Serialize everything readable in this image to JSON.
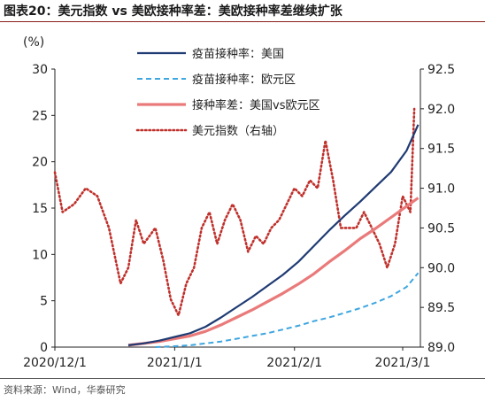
{
  "figure": {
    "title": "图表20：美元指数 vs 美欧接种率差：美欧接种率差继续扩张",
    "source": "资料来源：Wind，华泰研究"
  },
  "colors": {
    "us": "#1f3b73",
    "eu": "#3ea6e0",
    "diff": "#ea7a7a",
    "dxy": "#c0302b",
    "title_rule": "#8c1d1d"
  },
  "chart_data": {
    "type": "line",
    "title": "",
    "xlabel": "",
    "ylabel": "(%)",
    "ylabel_right": "",
    "x_range": [
      "2020-12-01",
      "2021-03-01"
    ],
    "ylim": [
      0,
      30
    ],
    "ylim_right": [
      89.0,
      92.5
    ],
    "grid": false,
    "legend_position": "top-center",
    "x_ticks": [
      "2020/12/1",
      "2021/1/1",
      "2021/2/1",
      "2021/3/1"
    ],
    "x_tick_dates": [
      "2020-12-01",
      "2021-01-01",
      "2021-02-01",
      "2021-03-01"
    ],
    "y_ticks": [
      0,
      5,
      10,
      15,
      20,
      25,
      30
    ],
    "y_ticks_right": [
      "89.0",
      "89.5",
      "90.0",
      "90.5",
      "91.0",
      "91.5",
      "92.0",
      "92.5"
    ],
    "series": [
      {
        "name": "疫苗接种率：美国",
        "axis": "left",
        "style": "solid",
        "x": [
          "2020-12-20",
          "2020-12-24",
          "2020-12-28",
          "2021-01-01",
          "2021-01-05",
          "2021-01-09",
          "2021-01-13",
          "2021-01-17",
          "2021-01-21",
          "2021-01-25",
          "2021-01-29",
          "2021-02-02",
          "2021-02-06",
          "2021-02-10",
          "2021-02-14",
          "2021-02-18",
          "2021-02-22",
          "2021-02-26",
          "2021-03-02",
          "2021-03-05"
        ],
        "y": [
          0.2,
          0.4,
          0.7,
          1.1,
          1.5,
          2.2,
          3.2,
          4.3,
          5.4,
          6.6,
          7.8,
          9.2,
          10.9,
          12.6,
          14.2,
          15.7,
          17.3,
          18.9,
          21.2,
          24.0
        ]
      },
      {
        "name": "疫苗接种率：欧元区",
        "axis": "left",
        "style": "dashed",
        "x": [
          "2020-12-27",
          "2021-01-01",
          "2021-01-05",
          "2021-01-09",
          "2021-01-13",
          "2021-01-17",
          "2021-01-21",
          "2021-01-25",
          "2021-01-29",
          "2021-02-02",
          "2021-02-06",
          "2021-02-10",
          "2021-02-14",
          "2021-02-18",
          "2021-02-22",
          "2021-02-26",
          "2021-03-02",
          "2021-03-05"
        ],
        "y": [
          0.0,
          0.1,
          0.2,
          0.4,
          0.6,
          0.9,
          1.2,
          1.5,
          1.9,
          2.3,
          2.8,
          3.2,
          3.7,
          4.2,
          4.8,
          5.5,
          6.5,
          8.0
        ]
      },
      {
        "name": "接种率差：美国vs欧元区",
        "axis": "left",
        "style": "solid",
        "x": [
          "2020-12-20",
          "2020-12-24",
          "2020-12-28",
          "2021-01-01",
          "2021-01-05",
          "2021-01-09",
          "2021-01-13",
          "2021-01-17",
          "2021-01-21",
          "2021-01-25",
          "2021-01-29",
          "2021-02-02",
          "2021-02-06",
          "2021-02-10",
          "2021-02-14",
          "2021-02-18",
          "2021-02-22",
          "2021-02-26",
          "2021-03-02",
          "2021-03-05"
        ],
        "y": [
          0.2,
          0.4,
          0.6,
          0.9,
          1.2,
          1.7,
          2.4,
          3.2,
          4.0,
          4.9,
          5.8,
          6.8,
          7.9,
          9.2,
          10.4,
          11.7,
          12.8,
          14.0,
          15.2,
          16.1
        ]
      },
      {
        "name": "美元指数（右轴）",
        "axis": "right",
        "style": "dotted",
        "x": [
          "2020-12-01",
          "2020-12-03",
          "2020-12-06",
          "2020-12-09",
          "2020-12-12",
          "2020-12-15",
          "2020-12-18",
          "2020-12-20",
          "2020-12-22",
          "2020-12-24",
          "2020-12-27",
          "2020-12-29",
          "2020-12-31",
          "2021-01-02",
          "2021-01-04",
          "2021-01-06",
          "2021-01-08",
          "2021-01-10",
          "2021-01-12",
          "2021-01-14",
          "2021-01-16",
          "2021-01-18",
          "2021-01-20",
          "2021-01-22",
          "2021-01-24",
          "2021-01-26",
          "2021-01-28",
          "2021-01-30",
          "2021-02-01",
          "2021-02-03",
          "2021-02-05",
          "2021-02-07",
          "2021-02-09",
          "2021-02-11",
          "2021-02-13",
          "2021-02-15",
          "2021-02-17",
          "2021-02-19",
          "2021-02-21",
          "2021-02-23",
          "2021-02-25",
          "2021-02-27",
          "2021-03-01",
          "2021-03-03",
          "2021-03-04"
        ],
        "y": [
          91.2,
          90.7,
          90.8,
          91.0,
          90.9,
          90.5,
          89.8,
          90.0,
          90.6,
          90.3,
          90.5,
          90.1,
          89.6,
          89.4,
          89.8,
          90.0,
          90.5,
          90.7,
          90.3,
          90.6,
          90.8,
          90.6,
          90.2,
          90.4,
          90.3,
          90.5,
          90.6,
          90.8,
          91.0,
          90.9,
          91.1,
          91.0,
          91.6,
          91.1,
          90.5,
          90.5,
          90.5,
          90.7,
          90.5,
          90.3,
          90.0,
          90.3,
          90.9,
          90.7,
          92.0
        ]
      }
    ]
  }
}
